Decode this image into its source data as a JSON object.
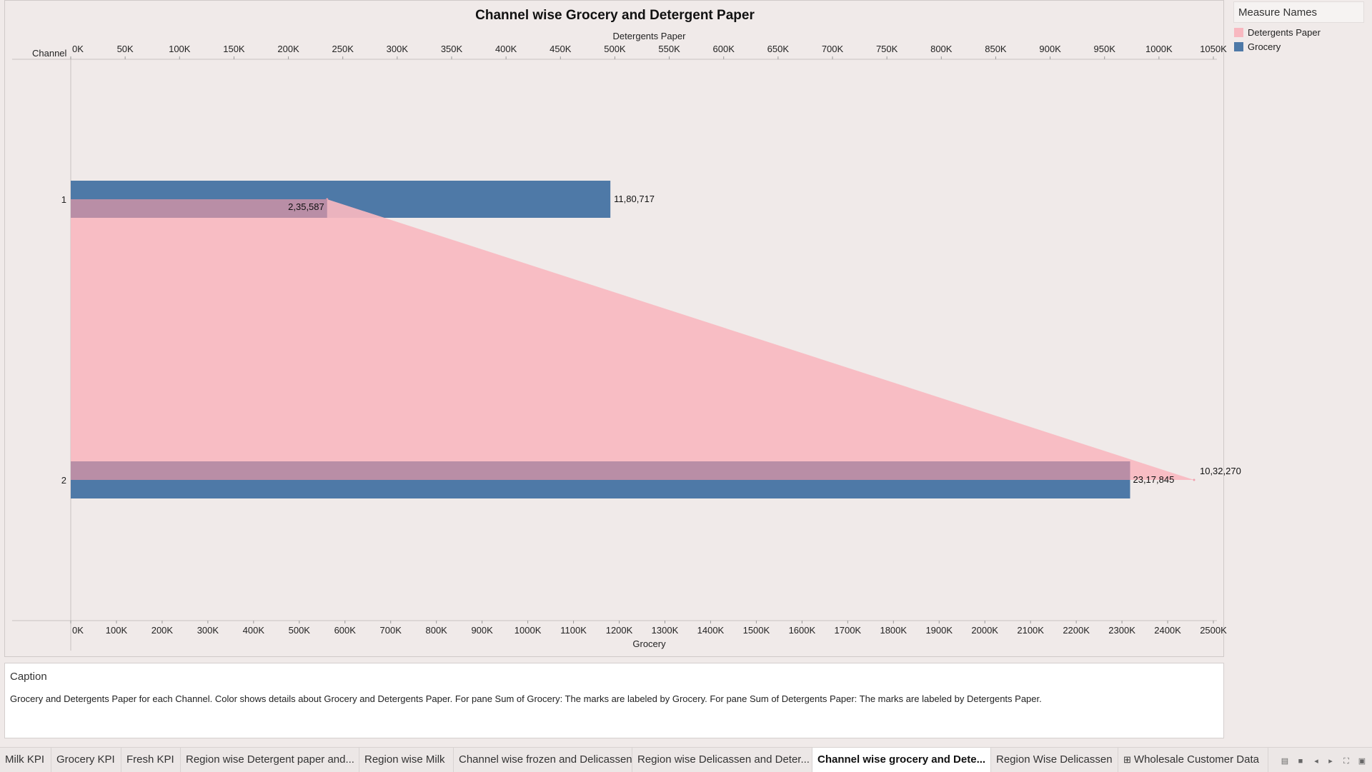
{
  "chart_data": {
    "type": "bar",
    "title": "Channel wise Grocery and Detergent Paper",
    "row_header": "Channel",
    "categories": [
      "1",
      "2"
    ],
    "top_axis": {
      "label": "Detergents Paper",
      "range": [
        0,
        1050000
      ],
      "ticks": [
        "0K",
        "50K",
        "100K",
        "150K",
        "200K",
        "250K",
        "300K",
        "350K",
        "400K",
        "450K",
        "500K",
        "550K",
        "600K",
        "650K",
        "700K",
        "750K",
        "800K",
        "850K",
        "900K",
        "950K",
        "1000K",
        "1050K"
      ]
    },
    "bottom_axis": {
      "label": "Grocery",
      "range": [
        0,
        2500000
      ],
      "ticks": [
        "0K",
        "100K",
        "200K",
        "300K",
        "400K",
        "500K",
        "600K",
        "700K",
        "800K",
        "900K",
        "1000K",
        "1100K",
        "1200K",
        "1300K",
        "1400K",
        "1500K",
        "1600K",
        "1700K",
        "1800K",
        "1900K",
        "2000K",
        "2100K",
        "2200K",
        "2300K",
        "2400K",
        "2500K"
      ]
    },
    "series": [
      {
        "name": "Grocery",
        "axis": "bottom",
        "mark": "bar",
        "color": "#4e79a7",
        "values": [
          1180717,
          2317845
        ],
        "labels": [
          "11,80,717",
          "23,17,845"
        ]
      },
      {
        "name": "Detergents Paper",
        "axis": "top",
        "mark": "area",
        "color": "#f4a7b2",
        "values": [
          235587,
          1032270
        ],
        "labels": [
          "2,35,587",
          "10,32,270"
        ]
      }
    ],
    "legend": {
      "title": "Measure Names",
      "placement": "right",
      "entries": [
        {
          "label": "Detergents Paper",
          "color": "#f8b8c0"
        },
        {
          "label": "Grocery",
          "color": "#4e79a7"
        }
      ]
    }
  },
  "caption": {
    "title": "Caption",
    "text": "Grocery and Detergents Paper for each Channel.  Color shows details about Grocery and Detergents Paper.  For pane Sum of Grocery:  The marks are labeled by Grocery.  For pane Sum of Detergents Paper:  The marks are labeled by Detergents Paper."
  },
  "tabs": [
    {
      "label": "Milk KPI",
      "active": false,
      "icon": ""
    },
    {
      "label": "Grocery KPI",
      "active": false,
      "icon": ""
    },
    {
      "label": "Fresh KPI",
      "active": false,
      "icon": ""
    },
    {
      "label": "Region wise Detergent paper and...",
      "active": false,
      "icon": ""
    },
    {
      "label": "Region wise Milk",
      "active": false,
      "icon": ""
    },
    {
      "label": "Channel wise frozen and Delicassen",
      "active": false,
      "icon": ""
    },
    {
      "label": "Region wise Delicassen and Deter...",
      "active": false,
      "icon": ""
    },
    {
      "label": "Channel wise grocery and Dete...",
      "active": true,
      "icon": ""
    },
    {
      "label": "Region Wise Delicassen",
      "active": false,
      "icon": ""
    },
    {
      "label": "Wholesale Customer Data",
      "active": false,
      "icon": "datasource-grid-icon"
    }
  ]
}
